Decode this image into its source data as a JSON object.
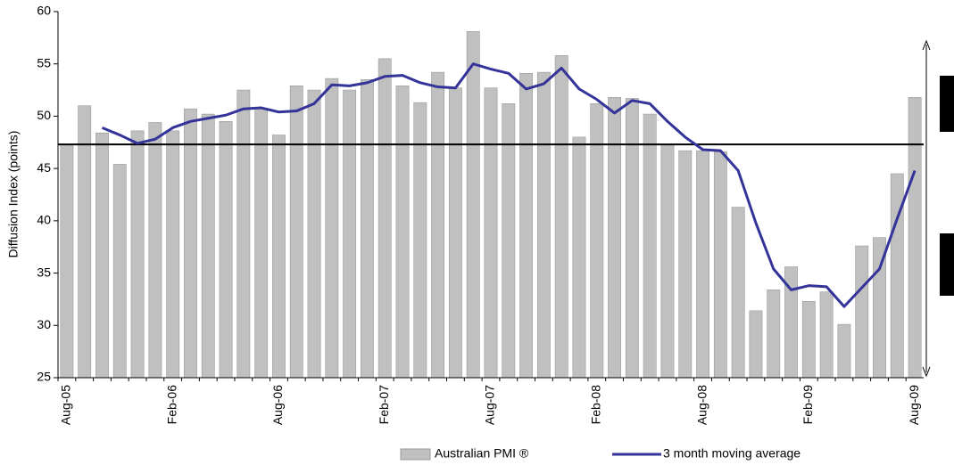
{
  "chart_data": {
    "type": "bar_line",
    "y_label": "Diffusion Index (points)",
    "categories": [
      "Aug-05",
      null,
      null,
      null,
      null,
      null,
      "Feb-06",
      null,
      null,
      null,
      null,
      null,
      "Aug-06",
      null,
      null,
      null,
      null,
      null,
      "Feb-07",
      null,
      null,
      null,
      null,
      null,
      "Aug-07",
      null,
      null,
      null,
      null,
      null,
      "Feb-08",
      null,
      null,
      null,
      null,
      null,
      "Aug-08",
      null,
      null,
      null,
      null,
      null,
      "Feb-09",
      null,
      null,
      null,
      null,
      null,
      "Aug-09"
    ],
    "series": [
      {
        "name": "Australian PMI ®",
        "kind": "bar",
        "color": "#c0c0c0",
        "values": [
          47.3,
          51.0,
          48.4,
          45.4,
          48.6,
          49.4,
          48.6,
          50.7,
          50.2,
          49.5,
          52.5,
          50.7,
          48.2,
          52.9,
          52.5,
          53.6,
          52.5,
          53.5,
          55.5,
          52.9,
          51.3,
          54.2,
          52.7,
          58.1,
          52.7,
          51.2,
          54.1,
          54.2,
          55.8,
          48.0,
          51.2,
          51.8,
          51.7,
          50.2,
          47.3,
          46.7,
          46.7,
          46.6,
          41.3,
          31.4,
          33.4,
          35.6,
          32.3,
          33.2,
          30.1,
          37.6,
          38.4,
          44.5,
          51.8
        ]
      },
      {
        "name": "3 month moving average",
        "kind": "line",
        "color": "#333399",
        "values": [
          null,
          null,
          48.9,
          48.2,
          47.4,
          47.8,
          48.9,
          49.5,
          49.8,
          50.1,
          50.7,
          50.8,
          50.4,
          50.5,
          51.2,
          53.0,
          52.9,
          53.2,
          53.8,
          53.9,
          53.2,
          52.8,
          52.7,
          55.0,
          54.5,
          54.1,
          52.6,
          53.1,
          54.6,
          52.6,
          51.6,
          50.3,
          51.5,
          51.2,
          49.5,
          48.0,
          46.8,
          46.7,
          44.8,
          39.8,
          35.4,
          33.4,
          33.8,
          33.7,
          31.8,
          33.6,
          35.4,
          40.2,
          44.8
        ]
      }
    ],
    "reference_line": 47.3,
    "ylim": [
      25,
      60
    ],
    "yticks": [
      25,
      30,
      35,
      40,
      45,
      50,
      55,
      60
    ]
  }
}
